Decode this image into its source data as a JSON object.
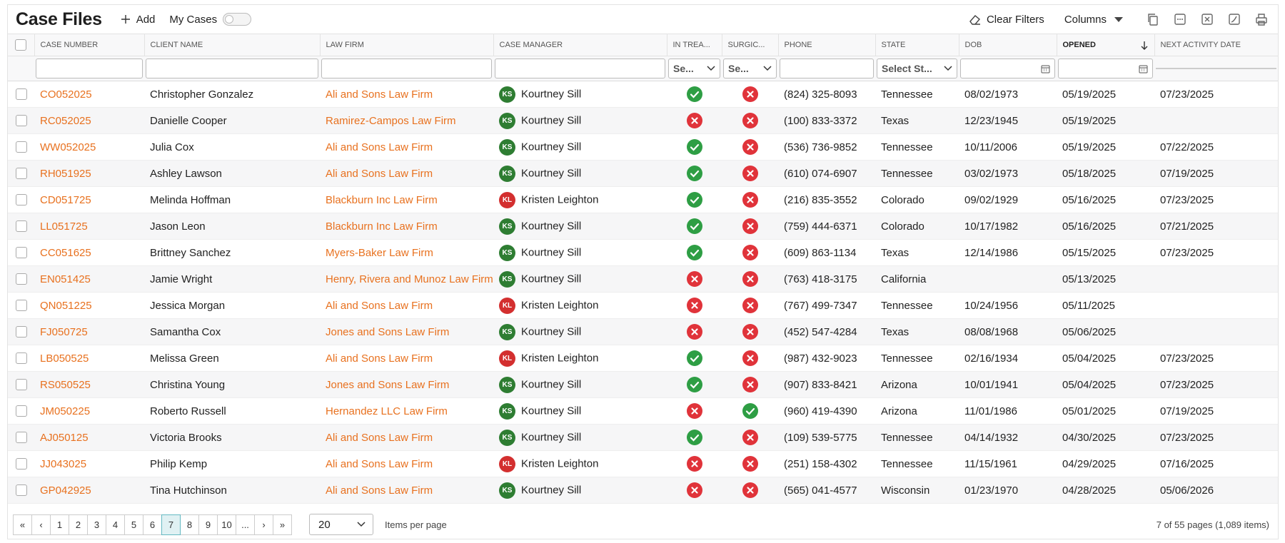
{
  "header": {
    "title": "Case Files",
    "add": "Add",
    "my_cases": "My Cases",
    "clear_filters": "Clear Filters",
    "columns": "Columns"
  },
  "table": {
    "columns": [
      "CASE NUMBER",
      "CLIENT NAME",
      "LAW FIRM",
      "CASE MANAGER",
      "IN TREA...",
      "SURGIC...",
      "PHONE",
      "STATE",
      "DOB",
      "OPENED",
      "NEXT ACTIVITY DATE"
    ],
    "sorted_column": 9,
    "filters": [
      {
        "type": "text"
      },
      {
        "type": "text"
      },
      {
        "type": "text"
      },
      {
        "type": "text"
      },
      {
        "type": "select",
        "placeholder": "Se..."
      },
      {
        "type": "select",
        "placeholder": "Se..."
      },
      {
        "type": "text"
      },
      {
        "type": "select",
        "placeholder": "Select St..."
      },
      {
        "type": "date"
      },
      {
        "type": "date"
      },
      {
        "type": "none"
      }
    ],
    "rows": [
      [
        "CO052025",
        "Christopher Gonzalez",
        "Ali and Sons Law Firm",
        {
          "initials": "KS",
          "name": "Kourtney Sill",
          "color": "#2e7d32"
        },
        true,
        false,
        "(824) 325-8093",
        "Tennessee",
        "08/02/1973",
        "05/19/2025",
        "07/23/2025"
      ],
      [
        "RC052025",
        "Danielle Cooper",
        "Ramirez-Campos Law Firm",
        {
          "initials": "KS",
          "name": "Kourtney Sill",
          "color": "#2e7d32"
        },
        false,
        false,
        "(100) 833-3372",
        "Texas",
        "12/23/1945",
        "05/19/2025",
        null
      ],
      [
        "WW052025",
        "Julia Cox",
        "Ali and Sons Law Firm",
        {
          "initials": "KS",
          "name": "Kourtney Sill",
          "color": "#2e7d32"
        },
        true,
        false,
        "(536) 736-9852",
        "Tennessee",
        "10/11/2006",
        "05/19/2025",
        "07/22/2025"
      ],
      [
        "RH051925",
        "Ashley Lawson",
        "Ali and Sons Law Firm",
        {
          "initials": "KS",
          "name": "Kourtney Sill",
          "color": "#2e7d32"
        },
        true,
        false,
        "(610) 074-6907",
        "Tennessee",
        "03/02/1973",
        "05/18/2025",
        "07/19/2025"
      ],
      [
        "CD051725",
        "Melinda Hoffman",
        "Blackburn Inc Law Firm",
        {
          "initials": "KL",
          "name": "Kristen Leighton",
          "color": "#d32f2f"
        },
        true,
        false,
        "(216) 835-3552",
        "Colorado",
        "09/02/1929",
        "05/16/2025",
        "07/23/2025"
      ],
      [
        "LL051725",
        "Jason Leon",
        "Blackburn Inc Law Firm",
        {
          "initials": "KS",
          "name": "Kourtney Sill",
          "color": "#2e7d32"
        },
        true,
        false,
        "(759) 444-6371",
        "Colorado",
        "10/17/1982",
        "05/16/2025",
        "07/21/2025"
      ],
      [
        "CC051625",
        "Brittney Sanchez",
        "Myers-Baker Law Firm",
        {
          "initials": "KS",
          "name": "Kourtney Sill",
          "color": "#2e7d32"
        },
        true,
        false,
        "(609) 863-1134",
        "Texas",
        "12/14/1986",
        "05/15/2025",
        "07/23/2025"
      ],
      [
        "EN051425",
        "Jamie Wright",
        "Henry, Rivera and Munoz Law Firm",
        {
          "initials": "KS",
          "name": "Kourtney Sill",
          "color": "#2e7d32"
        },
        false,
        false,
        "(763) 418-3175",
        "California",
        null,
        "05/13/2025",
        null
      ],
      [
        "QN051225",
        "Jessica Morgan",
        "Ali and Sons Law Firm",
        {
          "initials": "KL",
          "name": "Kristen Leighton",
          "color": "#d32f2f"
        },
        false,
        false,
        "(767) 499-7347",
        "Tennessee",
        "10/24/1956",
        "05/11/2025",
        null
      ],
      [
        "FJ050725",
        "Samantha Cox",
        "Jones and Sons Law Firm",
        {
          "initials": "KS",
          "name": "Kourtney Sill",
          "color": "#2e7d32"
        },
        false,
        false,
        "(452) 547-4284",
        "Texas",
        "08/08/1968",
        "05/06/2025",
        null
      ],
      [
        "LB050525",
        "Melissa Green",
        "Ali and Sons Law Firm",
        {
          "initials": "KL",
          "name": "Kristen Leighton",
          "color": "#d32f2f"
        },
        true,
        false,
        "(987) 432-9023",
        "Tennessee",
        "02/16/1934",
        "05/04/2025",
        "07/23/2025"
      ],
      [
        "RS050525",
        "Christina Young",
        "Jones and Sons Law Firm",
        {
          "initials": "KS",
          "name": "Kourtney Sill",
          "color": "#2e7d32"
        },
        true,
        false,
        "(907) 833-8421",
        "Arizona",
        "10/01/1941",
        "05/04/2025",
        "07/23/2025"
      ],
      [
        "JM050225",
        "Roberto Russell",
        "Hernandez LLC Law Firm",
        {
          "initials": "KS",
          "name": "Kourtney Sill",
          "color": "#2e7d32"
        },
        false,
        true,
        "(960) 419-4390",
        "Arizona",
        "11/01/1986",
        "05/01/2025",
        "07/19/2025"
      ],
      [
        "AJ050125",
        "Victoria Brooks",
        "Ali and Sons Law Firm",
        {
          "initials": "KS",
          "name": "Kourtney Sill",
          "color": "#2e7d32"
        },
        true,
        false,
        "(109) 539-5775",
        "Tennessee",
        "04/14/1932",
        "04/30/2025",
        "07/23/2025"
      ],
      [
        "JJ043025",
        "Philip Kemp",
        "Ali and Sons Law Firm",
        {
          "initials": "KL",
          "name": "Kristen Leighton",
          "color": "#d32f2f"
        },
        false,
        false,
        "(251) 158-4302",
        "Tennessee",
        "11/15/1961",
        "04/29/2025",
        "07/16/2025"
      ],
      [
        "GP042925",
        "Tina Hutchinson",
        "Ali and Sons Law Firm",
        {
          "initials": "KS",
          "name": "Kourtney Sill",
          "color": "#2e7d32"
        },
        false,
        false,
        "(565) 041-4577",
        "Wisconsin",
        "01/23/1970",
        "04/28/2025",
        "05/06/2026"
      ]
    ]
  },
  "pagination": {
    "buttons": [
      "«",
      "‹",
      "1",
      "2",
      "3",
      "4",
      "5",
      "6",
      "7",
      "8",
      "9",
      "10",
      "...",
      "›",
      "»"
    ],
    "active_index": 8,
    "per_page": "20",
    "per_page_label": "Items per page",
    "summary": "7 of 55 pages (1,089 items)"
  }
}
